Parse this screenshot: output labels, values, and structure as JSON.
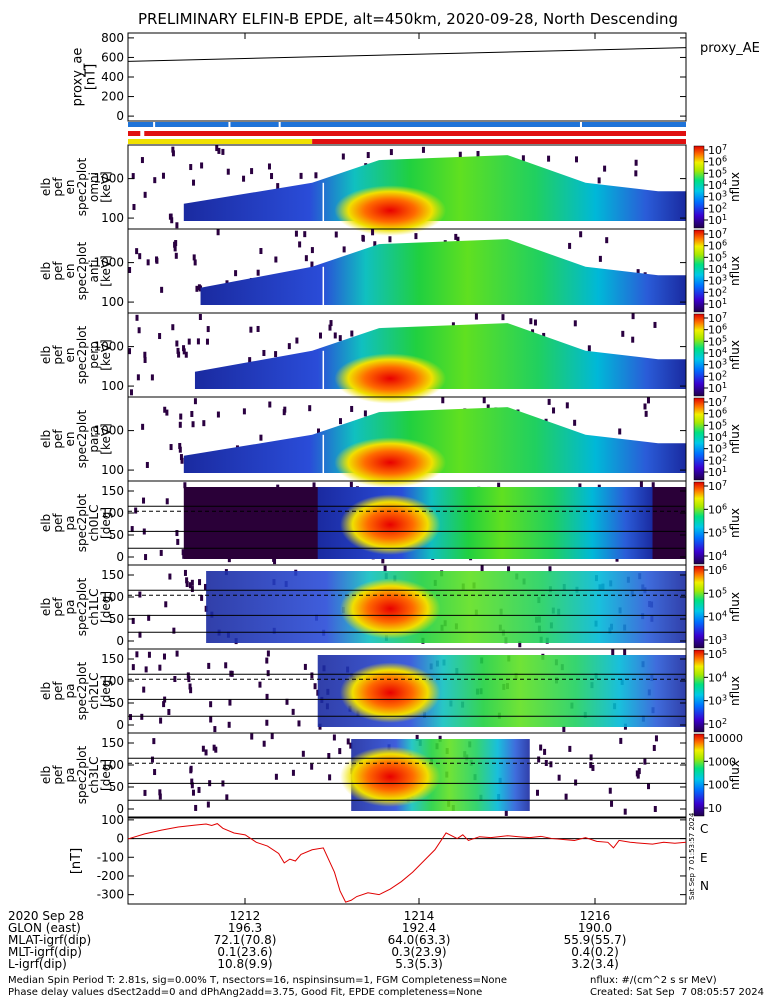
{
  "title": "PRELIMINARY ELFIN-B EPDE, alt=450km, 2020-09-28, North Descending",
  "colors": {
    "bar_blue": "#1e73d8",
    "bar_red": "#e01010",
    "bar_yellow": "#f0e000",
    "fgm_line": "#e00000",
    "comp_c": "#00cfe8",
    "comp_e": "#e00000",
    "comp_n": "#00c000"
  },
  "colorbar_label": "nflux",
  "colorbar_ticks_1e7": [
    "10^7",
    "10^6",
    "10^5",
    "10^4",
    "10^3",
    "10^2",
    "10^1"
  ],
  "colorbar_ticks_lc": [
    "10^7",
    "10^6",
    "10^5",
    "10^4"
  ],
  "colorbar_ticks_ch1": [
    "10^6",
    "10^5",
    "10^4",
    "10^3"
  ],
  "colorbar_ticks_ch2": [
    "10^5",
    "10^4",
    "10^3",
    "10^2"
  ],
  "colorbar_ticks_ch3": [
    "10000",
    "1000",
    "100",
    "10"
  ],
  "fgm_components": [
    "C",
    "E",
    "N"
  ],
  "side_stamp": "Sat Sep 7 01:53:57 2024",
  "chart_data": [
    {
      "type": "line",
      "panel": "proxy_ae",
      "ylabel": "proxy_ae\n[nT]",
      "legend": "proxy_AE",
      "ylim": [
        -50,
        850
      ],
      "yticks": [
        "800",
        "600",
        "400",
        "200",
        "0"
      ],
      "x": [
        0,
        1
      ],
      "values": [
        560,
        700
      ]
    },
    {
      "type": "heatmap",
      "panel": "spec2plot_en_omni",
      "ylabel": "elb\npef\nen\nspec2plot\nomni\n[keV]",
      "yticks": [
        "1000",
        "100"
      ],
      "cbar_range": "10^1 - 10^7"
    },
    {
      "type": "heatmap",
      "panel": "spec2plot_en_anti",
      "ylabel": "elb\npef\nen\nspec2plot\nanti\n[keV]",
      "yticks": [
        "1000",
        "100"
      ],
      "cbar_range": "10^1 - 10^7"
    },
    {
      "type": "heatmap",
      "panel": "spec2plot_en_perp",
      "ylabel": "elb\npef\nen\nspec2plot\nperp\n[keV]",
      "yticks": [
        "1000",
        "100"
      ],
      "cbar_range": "10^1 - 10^7"
    },
    {
      "type": "heatmap",
      "panel": "spec2plot_en_para",
      "ylabel": "elb\npef\nen\nspec2plot\npara\n[keV]",
      "yticks": [
        "1000",
        "100"
      ],
      "cbar_range": "10^1 - 10^7"
    },
    {
      "type": "heatmap",
      "panel": "pa_spec2plot_ch0LC",
      "ylabel": "elb\npef\npa\nspec2plot\nch0LC\n[deg]",
      "yticks": [
        "150",
        "100",
        "50",
        "0"
      ],
      "cbar_range": "10^4 - 10^7"
    },
    {
      "type": "heatmap",
      "panel": "pa_spec2plot_ch1LC",
      "ylabel": "elb\npef\npa\nspec2plot\nch1LC\n[deg]",
      "yticks": [
        "150",
        "100",
        "50",
        "0"
      ],
      "cbar_range": "10^3 - 10^6"
    },
    {
      "type": "heatmap",
      "panel": "pa_spec2plot_ch2LC",
      "ylabel": "elb\npef\npa\nspec2plot\nch2LC\n[deg]",
      "yticks": [
        "150",
        "100",
        "50",
        "0"
      ],
      "cbar_range": "10^2 - 10^5"
    },
    {
      "type": "heatmap",
      "panel": "pa_spec2plot_ch3LC",
      "ylabel": "elb\npef\npa\nspec2plot\nch3LC\n[deg]",
      "yticks": [
        "150",
        "100",
        "50",
        "0"
      ],
      "cbar_range": "10 - 10000"
    },
    {
      "type": "line",
      "panel": "fgm",
      "ylabel": "[nT]",
      "ylim": [
        -350,
        110
      ],
      "yticks": [
        "100",
        "0",
        "-100",
        "-200",
        "-300"
      ],
      "x": [
        0.0,
        0.03,
        0.06,
        0.09,
        0.12,
        0.14,
        0.15,
        0.16,
        0.17,
        0.19,
        0.21,
        0.23,
        0.25,
        0.27,
        0.28,
        0.29,
        0.3,
        0.31,
        0.33,
        0.35,
        0.37,
        0.38,
        0.39,
        0.4,
        0.41,
        0.43,
        0.45,
        0.47,
        0.49,
        0.51,
        0.53,
        0.55,
        0.57,
        0.59,
        0.6,
        0.61,
        0.63,
        0.65,
        0.68,
        0.7,
        0.72,
        0.74,
        0.76,
        0.78,
        0.8,
        0.82,
        0.84,
        0.86,
        0.87,
        0.88,
        0.9,
        0.92,
        0.94,
        0.96,
        0.98,
        1.0
      ],
      "values": [
        -2,
        25,
        45,
        62,
        72,
        78,
        70,
        80,
        55,
        30,
        20,
        -20,
        -40,
        -80,
        -130,
        -110,
        -120,
        -85,
        -60,
        -50,
        -180,
        -280,
        -340,
        -330,
        -310,
        -290,
        -300,
        -270,
        -230,
        -180,
        -120,
        -60,
        30,
        0,
        20,
        -10,
        10,
        5,
        15,
        10,
        5,
        12,
        0,
        -5,
        -10,
        5,
        -15,
        -20,
        -50,
        -10,
        -20,
        -25,
        -30,
        -20,
        -25,
        -20
      ]
    }
  ],
  "xaxis": {
    "row_labels": [
      "2020 Sep 28",
      "GLON (east)",
      "MLAT-igrf(dip)",
      "MLT-igrf(dip)",
      "L-igrf(dip)"
    ],
    "columns": [
      {
        "time": "1212",
        "glon": "196.3",
        "mlat": "72.1(70.8)",
        "mlt": "0.1(23.6)",
        "l": "10.8(9.9)"
      },
      {
        "time": "1214",
        "glon": "192.4",
        "mlat": "64.0(63.3)",
        "mlt": "0.3(23.9)",
        "l": "5.3(5.3)"
      },
      {
        "time": "1216",
        "glon": "190.0",
        "mlat": "55.9(55.7)",
        "mlt": "0.4(0.2)",
        "l": "3.2(3.4)"
      }
    ]
  },
  "footer": {
    "line1": "Median Spin Period T: 2.81s, sig=0.00% T, nsectors=16, nspinsinsum=1, FGM Completeness=None",
    "line2": "Phase delay values dSect2add=0 and dPhAng2add=3.75, Good Fit, EPDE completeness=None",
    "units": "nflux: #/(cm^2 s sr MeV)",
    "created": "Created: Sat Sep  7 08:05:57 2024"
  }
}
